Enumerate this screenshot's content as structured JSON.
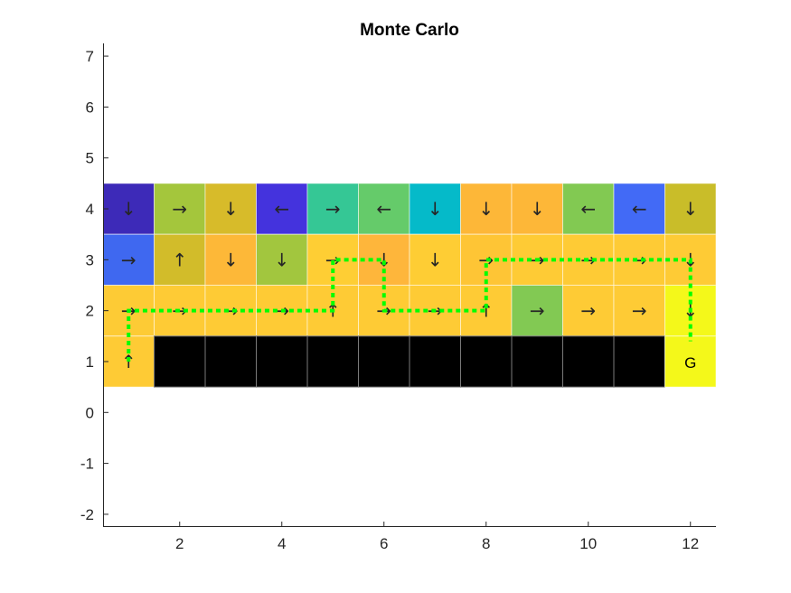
{
  "chart_data": {
    "type": "heatmap",
    "title": "Monte Carlo",
    "xlabel": "",
    "ylabel": "",
    "xlim": [
      0.5,
      12.5
    ],
    "ylim": [
      -2.25,
      7.25
    ],
    "xticks": [
      "2",
      "4",
      "6",
      "8",
      "10",
      "12"
    ],
    "xtick_values": [
      2,
      4,
      6,
      8,
      10,
      12
    ],
    "yticks": [
      "-2",
      "-1",
      "0",
      "1",
      "2",
      "3",
      "4",
      "5",
      "6",
      "7"
    ],
    "ytick_values": [
      -2,
      -1,
      0,
      1,
      2,
      3,
      4,
      5,
      6,
      7
    ],
    "grid": false,
    "cliff_color": "#000000",
    "goal_label": "G",
    "goal_cell": [
      12,
      1
    ],
    "path_color": "#00ff00",
    "rows": [
      {
        "y": 4,
        "colors": [
          "#3d2ab8",
          "#a4c63c",
          "#d7bb2a",
          "#4433dd",
          "#35c795",
          "#65cb6a",
          "#05bac9",
          "#fdb738",
          "#fdb738",
          "#82c952",
          "#426af6",
          "#c9bd29"
        ],
        "arrows": [
          "↓",
          "→",
          "↓",
          "←",
          "→",
          "←",
          "↓",
          "↓",
          "↓",
          "←",
          "←",
          "↓"
        ]
      },
      {
        "y": 3,
        "colors": [
          "#3f68f0",
          "#d2bc2a",
          "#fdb838",
          "#a2c63e",
          "#fece34",
          "#feb63b",
          "#fecd34",
          "#fec535",
          "#fecb35",
          "#fecb35",
          "#fecb35",
          "#fecb35"
        ],
        "arrows": [
          "→",
          "↑",
          "↓",
          "↓",
          "→",
          "↓",
          "↓",
          "→",
          "→",
          "→",
          "→",
          "↓"
        ]
      },
      {
        "y": 2,
        "colors": [
          "#fdcb35",
          "#fecb35",
          "#fecb35",
          "#fecb35",
          "#fecb35",
          "#fecb35",
          "#fecb35",
          "#fecb35",
          "#82c953",
          "#fecb35",
          "#fecb35",
          "#f4f81a"
        ],
        "arrows": [
          "→",
          "→",
          "→",
          "→",
          "↑",
          "→",
          "→",
          "↑",
          "→",
          "→",
          "→",
          "↓"
        ]
      },
      {
        "y": 1,
        "colors": [
          "#fecb35",
          "#000000",
          "#000000",
          "#000000",
          "#000000",
          "#000000",
          "#000000",
          "#000000",
          "#000000",
          "#000000",
          "#000000",
          "#f4f81a"
        ],
        "arrows": [
          "↑",
          "",
          "",
          "",
          "",
          "",
          "",
          "",
          "",
          "",
          "",
          ""
        ]
      }
    ],
    "path": [
      [
        1,
        1
      ],
      [
        1,
        2
      ],
      [
        5,
        2
      ],
      [
        5,
        3
      ],
      [
        6,
        3
      ],
      [
        6,
        2
      ],
      [
        8,
        2
      ],
      [
        8,
        3
      ],
      [
        12,
        3
      ],
      [
        12,
        1.4
      ]
    ]
  }
}
